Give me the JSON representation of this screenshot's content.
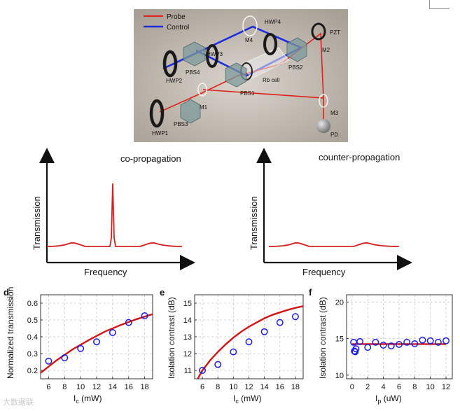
{
  "setup": {
    "legend": [
      {
        "label": "Probe",
        "color": "#e0201b"
      },
      {
        "label": "Control",
        "color": "#1d2be0"
      }
    ],
    "labels": {
      "hwp4": "HWP4",
      "m4": "M4",
      "pzt": "PZT",
      "m2": "M2",
      "hwp3": "HWP3",
      "pbs4": "PBS4",
      "hwp2": "HWP2",
      "pbs2": "PBS2",
      "rb": "Rb cell",
      "pbs1": "PBS1",
      "m1": "M1",
      "pbs3": "PBS3",
      "hwp1": "HWP1",
      "m3": "M3",
      "pd": "PD"
    }
  },
  "schematics": {
    "co": {
      "title": "co-propagation",
      "ylabel": "Transmission",
      "xlabel": "Frequency"
    },
    "counter": {
      "title": "counter-propagation",
      "ylabel": "Transmission",
      "xlabel": "Frequency"
    }
  },
  "chart_data": [
    {
      "panel": "d",
      "type": "scatter",
      "xlabel": "I_c (mW)",
      "ylabel": "Normalized transmission",
      "xlim": [
        5,
        19
      ],
      "ylim": [
        0.15,
        0.65
      ],
      "xticks": [
        6,
        8,
        10,
        12,
        14,
        16,
        18
      ],
      "yticks": [
        0.2,
        0.3,
        0.4,
        0.5,
        0.6
      ],
      "ytick_labels": [
        "0.2",
        "0.3",
        "0.4",
        "0.5",
        "0.6"
      ],
      "x": [
        6,
        8,
        10,
        12,
        14,
        16,
        18
      ],
      "y": [
        0.255,
        0.275,
        0.33,
        0.37,
        0.425,
        0.485,
        0.525
      ],
      "fit": {
        "x": [
          5,
          7,
          9,
          11,
          13,
          15,
          17,
          19
        ],
        "y": [
          0.185,
          0.26,
          0.325,
          0.38,
          0.43,
          0.47,
          0.505,
          0.535
        ]
      },
      "colors": {
        "points": "#1a1ae6",
        "fit": "#d21414"
      }
    },
    {
      "panel": "e",
      "type": "scatter",
      "xlabel": "I_c (mW)",
      "ylabel": "Isolation contrast (dB)",
      "xlim": [
        5,
        19
      ],
      "ylim": [
        10.5,
        15.5
      ],
      "xticks": [
        6,
        8,
        10,
        12,
        14,
        16,
        18
      ],
      "yticks": [
        11,
        12,
        13,
        14,
        15
      ],
      "ytick_labels": [
        "11",
        "12",
        "13",
        "14",
        "15"
      ],
      "x": [
        6,
        8,
        10,
        12,
        14,
        16,
        18
      ],
      "y": [
        11.0,
        11.35,
        12.1,
        12.7,
        13.3,
        13.85,
        14.2
      ],
      "fit": {
        "x": [
          5.4,
          6,
          7,
          8,
          9,
          10,
          11,
          12,
          13,
          14,
          15,
          16,
          17,
          18,
          19
        ],
        "y": [
          10.5,
          11.0,
          11.6,
          12.1,
          12.55,
          12.95,
          13.3,
          13.6,
          13.85,
          14.1,
          14.3,
          14.45,
          14.6,
          14.72,
          14.82
        ]
      },
      "colors": {
        "points": "#1a1ae6",
        "fit": "#d21414"
      }
    },
    {
      "panel": "f",
      "type": "scatter",
      "xlabel": "I_p (uW)",
      "ylabel": "Isolation contrast (dB)",
      "xlim": [
        -0.7,
        12.8
      ],
      "ylim": [
        9.5,
        21
      ],
      "xticks": [
        0,
        2,
        4,
        6,
        8,
        10,
        12
      ],
      "yticks": [
        10,
        15,
        20
      ],
      "ytick_labels": [
        "10",
        "15",
        "20"
      ],
      "x": [
        0.2,
        0.3,
        0.4,
        0.5,
        1.0,
        2.0,
        3.0,
        4.0,
        5.0,
        6.0,
        7.0,
        8.0,
        9.0,
        10.0,
        11.0,
        12.0
      ],
      "y": [
        14.5,
        13.3,
        13.2,
        13.6,
        14.6,
        13.8,
        14.5,
        14.1,
        14.0,
        14.2,
        14.5,
        14.3,
        14.8,
        14.7,
        14.5,
        14.7
      ],
      "fit": {
        "x": [
          0,
          12
        ],
        "y": [
          14.25,
          14.25
        ]
      },
      "colors": {
        "points": "#1a1ae6",
        "fit": "#d21414"
      }
    }
  ],
  "panels": {
    "d": "d",
    "e": "e",
    "f": "f"
  },
  "axis_labels": {
    "d": {
      "y": "Normalized transmission",
      "x_main": "I",
      "x_sub": "c",
      "x_unit": " (mW)"
    },
    "e": {
      "y": "Isolation contrast (dB)",
      "x_main": "I",
      "x_sub": "c",
      "x_unit": " (mW)"
    },
    "f": {
      "y": "Isolation contrast (dB)",
      "x_main": "I",
      "x_sub": "p",
      "x_unit": " (uW)"
    }
  },
  "watermark": "大数据联"
}
